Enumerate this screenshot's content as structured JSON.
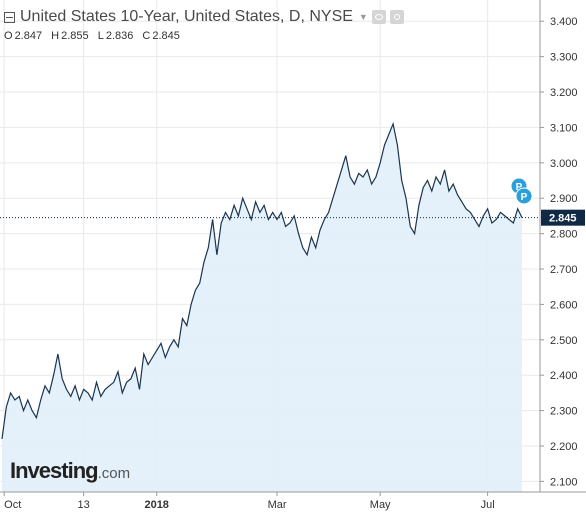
{
  "header": {
    "title": "United States 10-Year, United States, D, NYSE",
    "ohlc": [
      {
        "key": "O",
        "value": "2.847"
      },
      {
        "key": "H",
        "value": "2.855"
      },
      {
        "key": "L",
        "value": "2.836"
      },
      {
        "key": "C",
        "value": "2.845"
      }
    ]
  },
  "logo": {
    "main": "Investing",
    "suffix": ".com"
  },
  "markers": [
    {
      "label": "P"
    },
    {
      "label": "P"
    }
  ],
  "colors": {
    "line": "#1a3550",
    "fill": "#e1eefa",
    "current_badge": "#102a46",
    "marker": "#2a9fd8",
    "grid": "#e9e9e9"
  },
  "chart_data": {
    "type": "area",
    "title": "United States 10-Year, United States, D, NYSE",
    "current_value": "2.845",
    "ylim": [
      2.07,
      3.46
    ],
    "y_ticks": [
      "3.400",
      "3.300",
      "3.200",
      "3.100",
      "3.000",
      "2.900",
      "2.800",
      "2.700",
      "2.600",
      "2.500",
      "2.400",
      "2.300",
      "2.200",
      "2.100"
    ],
    "x_ticks": [
      {
        "label": "Oct",
        "x": 0.5
      },
      {
        "label": "13",
        "x": 19
      },
      {
        "label": "2018",
        "x": 36
      },
      {
        "label": "Mar",
        "x": 64
      },
      {
        "label": "May",
        "x": 88
      },
      {
        "label": "Jul",
        "x": 113
      }
    ],
    "grid": true,
    "x": [
      0,
      1,
      2,
      3,
      4,
      5,
      6,
      7,
      8,
      9,
      10,
      11,
      12,
      13,
      14,
      15,
      16,
      17,
      18,
      19,
      20,
      21,
      22,
      23,
      24,
      25,
      26,
      27,
      28,
      29,
      30,
      31,
      32,
      33,
      34,
      35,
      36,
      37,
      38,
      39,
      40,
      41,
      42,
      43,
      44,
      45,
      46,
      47,
      48,
      49,
      50,
      51,
      52,
      53,
      54,
      55,
      56,
      57,
      58,
      59,
      60,
      61,
      62,
      63,
      64,
      65,
      66,
      67,
      68,
      69,
      70,
      71,
      72,
      73,
      74,
      75,
      76,
      77,
      78,
      79,
      80,
      81,
      82,
      83,
      84,
      85,
      86,
      87,
      88,
      89,
      90,
      91,
      92,
      93,
      94,
      95,
      96,
      97,
      98,
      99,
      100,
      101,
      102,
      103,
      104,
      105,
      106,
      107,
      108,
      109,
      110,
      111,
      112,
      113,
      114,
      115,
      116,
      117,
      118,
      119,
      120,
      121
    ],
    "values": [
      2.22,
      2.31,
      2.35,
      2.33,
      2.34,
      2.3,
      2.33,
      2.3,
      2.28,
      2.33,
      2.37,
      2.35,
      2.4,
      2.46,
      2.39,
      2.36,
      2.34,
      2.37,
      2.33,
      2.36,
      2.35,
      2.33,
      2.38,
      2.34,
      2.36,
      2.37,
      2.38,
      2.41,
      2.35,
      2.38,
      2.39,
      2.42,
      2.36,
      2.46,
      2.43,
      2.45,
      2.47,
      2.49,
      2.45,
      2.48,
      2.5,
      2.48,
      2.56,
      2.54,
      2.6,
      2.64,
      2.66,
      2.72,
      2.76,
      2.84,
      2.74,
      2.83,
      2.86,
      2.84,
      2.88,
      2.85,
      2.9,
      2.87,
      2.84,
      2.89,
      2.86,
      2.88,
      2.84,
      2.86,
      2.84,
      2.86,
      2.82,
      2.83,
      2.85,
      2.8,
      2.76,
      2.74,
      2.79,
      2.76,
      2.81,
      2.84,
      2.86,
      2.9,
      2.94,
      2.98,
      3.02,
      2.96,
      2.94,
      2.97,
      2.96,
      2.98,
      2.94,
      2.96,
      3.0,
      3.05,
      3.08,
      3.11,
      3.05,
      2.95,
      2.9,
      2.82,
      2.8,
      2.88,
      2.93,
      2.95,
      2.92,
      2.96,
      2.94,
      2.98,
      2.92,
      2.94,
      2.91,
      2.89,
      2.87,
      2.86,
      2.84,
      2.82,
      2.85,
      2.87,
      2.83,
      2.84,
      2.86,
      2.85,
      2.84,
      2.83,
      2.87,
      2.845
    ]
  }
}
